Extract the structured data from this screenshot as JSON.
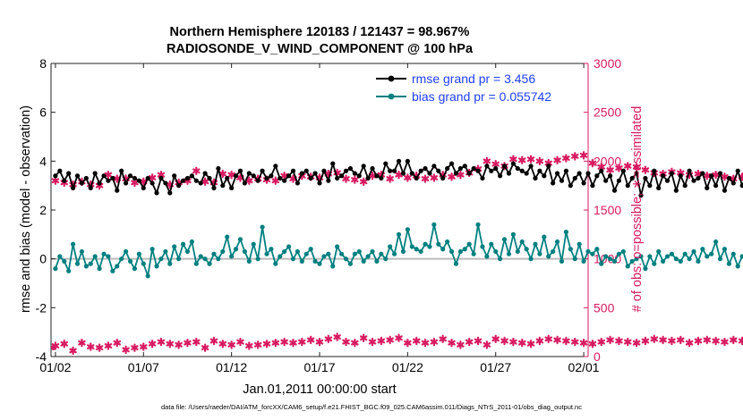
{
  "chart_data": {
    "type": "line",
    "title": "Northern Hemisphere 120183 / 121437 = 98.967%",
    "subtitle": "RADIOSONDE_V_WIND_COMPONENT @ 100 hPa",
    "xlabel": "Jan.01,2011 00:00:00 start",
    "ylabel_left": "rmse and bias (model - observation)",
    "ylabel_right": "# of obs: o=possible; ∗=assimilated",
    "ylim_left": [
      -4,
      8
    ],
    "ylim_right": [
      0,
      3000
    ],
    "xlim": [
      0.75,
      31.25
    ],
    "x_tick_values": [
      1,
      6,
      11,
      16,
      21,
      26,
      31
    ],
    "x_tick_labels": [
      "01/02",
      "01/07",
      "01/12",
      "01/17",
      "01/22",
      "01/27",
      "02/01"
    ],
    "y_left_ticks": [
      "-4",
      "-2",
      "0",
      "2",
      "4",
      "6",
      "8"
    ],
    "y_right_ticks": [
      "0",
      "500",
      "1000",
      "1500",
      "2000",
      "2500",
      "3000"
    ],
    "legend": [
      {
        "label": "rmse grand pr = 3.456",
        "color": "#000000"
      },
      {
        "label": "bias grand pr = 0.055742",
        "color": "#008080"
      }
    ],
    "legend_text_color": "#1f3fff",
    "colors": {
      "rmse": "#000000",
      "bias": "#008080",
      "obs": "#d81b60",
      "zero_line": "#bbbbbb",
      "right_axis": "#d81b60"
    },
    "interval_days": 0.25,
    "rmse": [
      3.4,
      3.6,
      3.2,
      3.5,
      2.9,
      3.4,
      3.1,
      3.3,
      2.9,
      3.5,
      3.1,
      3.4,
      3.2,
      3.3,
      2.8,
      3.6,
      3.1,
      3.4,
      3.3,
      3.2,
      2.9,
      3.3,
      3.1,
      2.7,
      3.3,
      3.1,
      2.7,
      3.4,
      3.0,
      3.2,
      3.3,
      3.4,
      3.2,
      3.1,
      3.5,
      3.3,
      2.9,
      3.7,
      3.0,
      3.3,
      2.9,
      3.4,
      3.6,
      3.1,
      3.5,
      3.4,
      3.2,
      3.6,
      3.3,
      3.4,
      3.8,
      3.3,
      3.2,
      3.4,
      3.6,
      3.1,
      3.5,
      3.6,
      3.3,
      3.5,
      3.1,
      3.6,
      3.2,
      3.9,
      3.3,
      3.4,
      3.6,
      3.7,
      3.5,
      3.4,
      3.8,
      3.3,
      3.7,
      3.4,
      3.3,
      3.9,
      3.6,
      3.6,
      4.0,
      3.5,
      4.0,
      3.5,
      3.3,
      3.6,
      3.7,
      3.5,
      3.8,
      3.6,
      3.3,
      3.7,
      3.9,
      3.5,
      3.7,
      3.8,
      3.5,
      3.7,
      3.6,
      3.3,
      3.8,
      3.6,
      3.7,
      3.4,
      3.8,
      3.5,
      3.9,
      3.7,
      3.6,
      3.5,
      3.8,
      3.3,
      3.6,
      3.4,
      3.8,
      3.1,
      3.5,
      3.2,
      3.6,
      3.0,
      3.3,
      3.5,
      3.1,
      3.5,
      3.0,
      3.4,
      3.6,
      3.2,
      3.4,
      2.8,
      3.2,
      3.6,
      3.0,
      3.3,
      3.5,
      2.6,
      3.3,
      3.0,
      3.6,
      2.9,
      3.4,
      3.2,
      3.5,
      2.8,
      3.4,
      3.0,
      3.6,
      3.2,
      3.3,
      3.5,
      2.9,
      3.4,
      3.0,
      3.5,
      2.8,
      3.3,
      3.1,
      3.6,
      3.0,
      3.4,
      3.2,
      3.5,
      3.6,
      3.1,
      3.5,
      3.4,
      3.6,
      3.7,
      3.2,
      3.4,
      3.6,
      3.4,
      3.7,
      3.0,
      3.5,
      3.3,
      3.6,
      3.2,
      3.7,
      3.4,
      2.8,
      3.3,
      3.5,
      3.6,
      3.1,
      3.4,
      2.4,
      3.3,
      3.5,
      2.9,
      3.2,
      2.6,
      3.1,
      3.6,
      3.0,
      3.2,
      3.2
    ],
    "bias": [
      -0.4,
      0.1,
      -0.1,
      -0.5,
      0.6,
      -0.2,
      0.3,
      -0.3,
      -0.2,
      0.1,
      -0.4,
      0.2,
      0.1,
      -0.5,
      -0.3,
      0.0,
      0.3,
      -0.1,
      -0.4,
      0.2,
      -0.2,
      -0.7,
      0.4,
      -0.3,
      0.0,
      0.3,
      -0.2,
      0.5,
      0.0,
      0.6,
      0.3,
      0.7,
      -0.2,
      0.1,
      0.0,
      -0.2,
      0.2,
      0.0,
      0.3,
      0.9,
      0.1,
      0.4,
      0.8,
      0.3,
      -0.1,
      0.6,
      0.0,
      1.3,
      0.2,
      0.4,
      -0.2,
      0.1,
      0.3,
      0.5,
      0.0,
      0.3,
      -0.1,
      0.2,
      0.4,
      -0.1,
      -0.2,
      0.1,
      0.2,
      -0.3,
      0.5,
      0.2,
      0.0,
      -0.2,
      0.2,
      0.3,
      -0.1,
      0.1,
      0.3,
      -0.1,
      0.2,
      0.0,
      0.5,
      0.2,
      1.0,
      0.3,
      1.2,
      0.5,
      0.4,
      0.3,
      0.6,
      0.5,
      1.4,
      0.6,
      0.4,
      0.7,
      0.3,
      -0.2,
      0.3,
      0.4,
      0.6,
      0.2,
      1.4,
      0.5,
      0.1,
      0.6,
      0.3,
      0.0,
      0.8,
      0.2,
      1.0,
      0.3,
      0.7,
      0.4,
      0.0,
      0.6,
      0.2,
      0.9,
      0.1,
      0.3,
      0.7,
      -0.1,
      1.1,
      0.4,
      0.0,
      0.6,
      -0.1,
      0.3,
      0.2,
      0.4,
      -0.2,
      0.1,
      0.0,
      -0.1,
      0.2,
      0.3,
      -0.3,
      -0.1,
      0.0,
      0.1,
      -0.4,
      0.1,
      -0.2,
      0.3,
      -0.1,
      0.1,
      0.2,
      0.0,
      -0.1,
      0.2,
      0.0,
      0.3,
      -0.1,
      0.4,
      0.1,
      0.2,
      0.7,
      0.0,
      0.4,
      -0.2,
      0.2,
      -0.3,
      0.1,
      0.0,
      -0.2,
      0.3,
      0.6,
      0.0,
      0.2,
      -0.3,
      0.1,
      0.0,
      0.4,
      0.1,
      0.3,
      -0.2,
      0.6,
      0.0,
      0.2,
      0.5,
      0.0,
      0.1,
      0.3,
      0.1,
      0.0,
      0.2,
      0.3,
      0.1,
      0.0,
      0.2,
      0.1,
      0.0,
      0.3,
      0.1,
      0.2,
      0.0,
      0.1,
      0.2,
      -0.4,
      0.1,
      -0.1,
      0.0
    ],
    "obs_assimilated": [
      1800,
      1740,
      1780,
      1700,
      1760,
      1680,
      1790,
      1720,
      1760,
      1820,
      1750,
      1700,
      1860,
      1790,
      1820,
      1760,
      1820,
      1800,
      1780,
      1840,
      1790,
      1760,
      1830,
      1770,
      1860,
      1800,
      1760,
      1820,
      1780,
      1840,
      1800,
      1760,
      1900,
      1850,
      1790,
      1810,
      1780,
      1840,
      1870,
      1750,
      1860,
      1900,
      1830,
      1720,
      1800,
      1860,
      1820,
      1780,
      1810,
      1850,
      1800,
      1830,
      1850,
      1880,
      1820,
      1800,
      1850,
      1860,
      1840,
      1870,
      1830,
      1800,
      1870,
      1840,
      1880,
      1860,
      1820,
      1850,
      1810,
      1830,
      1790,
      1820,
      1850,
      1800,
      1860,
      1780,
      1820,
      1790,
      1860,
      1800,
      1830,
      1780,
      1850,
      1800,
      1820,
      1790,
      1830,
      1780,
      1860,
      1810,
      1840,
      1800,
      1860,
      1830,
      1880,
      1900,
      1920,
      1960,
      2000,
      2040,
      1970,
      2010,
      1950,
      2000,
      2020,
      1980,
      2010,
      1990,
      2020,
      1960,
      2000,
      1950,
      1980,
      1960,
      2010,
      1990,
      2030,
      1970,
      2050,
      2020,
      2060,
      2030,
      1980,
      2000,
      1940,
      1970,
      1910,
      1950,
      1930,
      1960,
      1950,
      1920,
      1940,
      1890,
      1910,
      1930,
      1880,
      1900,
      1870,
      1920,
      1890,
      1850,
      1880,
      1900,
      1860,
      1830,
      1870,
      1810,
      1850,
      1820,
      1860,
      1800,
      1840,
      1860,
      1820,
      1870,
      1840,
      1810,
      1830,
      1860,
      1800,
      1790,
      1850,
      1780,
      1830,
      1810,
      1870,
      1820,
      1850,
      1880,
      1820,
      1860,
      1840,
      1890,
      1840,
      1870,
      1830,
      1860,
      1800,
      1880,
      1830,
      1850,
      1800,
      1840,
      1790,
      1920,
      1860,
      1790,
      1830,
      1780,
      1810,
      1770,
      1790
    ],
    "obs_count_low": [
      110,
      70,
      130,
      90,
      60,
      110,
      140,
      80,
      100,
      130,
      90,
      120,
      110,
      80,
      140,
      100,
      70,
      120,
      90,
      130,
      100,
      80,
      130,
      110,
      150,
      100,
      130,
      90,
      120,
      80,
      140,
      110,
      150,
      120,
      90,
      140,
      160,
      110,
      130,
      180,
      120,
      140,
      150,
      130,
      110,
      140,
      120,
      100,
      130,
      150,
      140,
      110,
      150,
      170,
      140,
      190,
      150,
      130,
      170,
      140,
      150,
      160,
      180,
      140,
      200,
      160,
      150,
      180,
      140,
      160,
      190,
      170,
      150,
      180,
      160,
      140,
      170,
      150,
      190,
      160,
      140,
      120,
      160,
      190,
      140,
      170,
      150,
      130,
      180,
      150,
      140,
      160,
      120,
      170,
      150,
      130,
      160,
      140,
      120,
      150,
      180,
      140,
      160,
      130,
      150,
      170,
      140,
      160,
      130,
      200,
      160,
      140,
      180,
      150,
      170,
      140,
      160,
      190,
      150,
      170,
      140,
      160,
      130,
      180,
      150,
      200,
      170,
      140,
      160,
      190,
      150,
      180,
      140,
      200,
      160,
      150,
      180,
      140,
      170,
      190,
      160,
      130,
      170,
      150,
      140,
      180,
      160,
      140,
      170,
      130,
      160,
      190,
      150,
      140,
      170,
      180,
      160,
      140,
      200,
      170,
      150,
      180,
      160,
      220,
      180,
      160,
      190,
      150,
      170,
      140,
      160,
      180,
      150,
      140,
      170,
      160,
      130,
      150,
      180,
      140,
      160,
      130,
      120,
      150,
      110,
      140,
      160,
      120,
      100,
      70
    ]
  },
  "footer": {
    "data_file": "data file: /Users/raeder/DAI/ATM_forcXX/CAM6_setup/f.e21.FHIST_BGC.f09_025.CAM6assim.011/Diags_NTrS_2011-01/obs_diag_output.nc"
  }
}
